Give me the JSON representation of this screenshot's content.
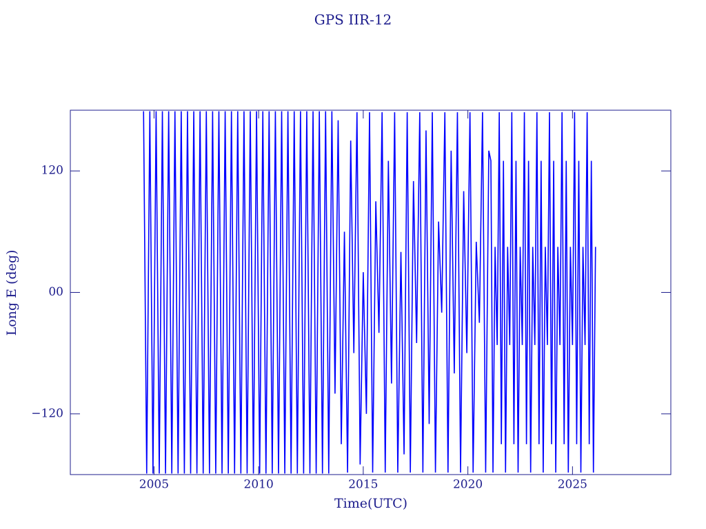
{
  "chart_data": {
    "type": "line",
    "title": "GPS IIR-12",
    "x_label": "Time(UTC)",
    "y_label": "Long E (deg)",
    "xlim": [
      2001,
      2029.7
    ],
    "ylim": [
      -180,
      180
    ],
    "xticks": [
      2005,
      2010,
      2015,
      2020,
      2025
    ],
    "yticks": [
      {
        "value": -120,
        "label": "−120"
      },
      {
        "value": 0,
        "label": "00"
      },
      120
    ],
    "series": [
      {
        "color": "#0000ff",
        "x": [
          2004.5,
          2004.65,
          2004.8,
          2004.95,
          2005.1,
          2005.25,
          2005.4,
          2005.55,
          2005.7,
          2005.85,
          2006,
          2006.15,
          2006.3,
          2006.45,
          2006.6,
          2006.75,
          2006.9,
          2007.05,
          2007.2,
          2007.35,
          2007.5,
          2007.65,
          2007.8,
          2007.95,
          2008.1,
          2008.25,
          2008.4,
          2008.55,
          2008.7,
          2008.85,
          2009,
          2009.15,
          2009.3,
          2009.45,
          2009.6,
          2009.75,
          2009.9,
          2010.05,
          2010.2,
          2010.35,
          2010.5,
          2010.65,
          2010.8,
          2010.95,
          2011.1,
          2011.25,
          2011.4,
          2011.55,
          2011.7,
          2011.85,
          2012,
          2012.15,
          2012.3,
          2012.45,
          2012.6,
          2012.75,
          2012.9,
          2013.05,
          2013.2,
          2013.35,
          2013.5,
          2013.65,
          2013.8,
          2013.95,
          2014.1,
          2014.25,
          2014.4,
          2014.55,
          2014.7,
          2014.85,
          2015,
          2015.15,
          2015.3,
          2015.45,
          2015.6,
          2015.75,
          2015.9,
          2016.05,
          2016.2,
          2016.35,
          2016.5,
          2016.65,
          2016.8,
          2016.95,
          2017.1,
          2017.25,
          2017.4,
          2017.55,
          2017.7,
          2017.85,
          2018,
          2018.15,
          2018.3,
          2018.45,
          2018.6,
          2018.75,
          2018.9,
          2019.05,
          2019.2,
          2019.35,
          2019.5,
          2019.65,
          2019.8,
          2019.95,
          2020.1,
          2020.25,
          2020.4,
          2020.55,
          2020.7,
          2020.85,
          2021,
          2021.1,
          2021.2,
          2021.3,
          2021.4,
          2021.5,
          2021.6,
          2021.7,
          2021.8,
          2021.9,
          2022,
          2022.1,
          2022.2,
          2022.3,
          2022.4,
          2022.5,
          2022.6,
          2022.7,
          2022.8,
          2022.9,
          2023,
          2023.1,
          2023.2,
          2023.3,
          2023.4,
          2023.5,
          2023.6,
          2023.7,
          2023.8,
          2023.9,
          2024,
          2024.1,
          2024.2,
          2024.3,
          2024.4,
          2024.5,
          2024.6,
          2024.7,
          2024.8,
          2024.9,
          2025,
          2025.1,
          2025.2,
          2025.3,
          2025.4,
          2025.5,
          2025.6,
          2025.7,
          2025.8,
          2025.9,
          2026,
          2026.1
        ],
        "values": [
          179,
          -179,
          179,
          -179,
          179,
          -179,
          179,
          -179,
          179,
          -179,
          179,
          -179,
          179,
          -179,
          179,
          -179,
          179,
          -179,
          179,
          -179,
          179,
          -179,
          179,
          -179,
          179,
          -179,
          179,
          -179,
          179,
          -179,
          179,
          -179,
          179,
          -179,
          179,
          -179,
          179,
          -179,
          179,
          -179,
          179,
          -179,
          179,
          -179,
          179,
          -179,
          179,
          -179,
          179,
          -179,
          179,
          -179,
          179,
          -179,
          179,
          -179,
          179,
          -179,
          179,
          -179,
          179,
          -100,
          170,
          -150,
          60,
          -178,
          150,
          -60,
          178,
          -170,
          20,
          -120,
          178,
          -178,
          90,
          -40,
          178,
          -178,
          130,
          -90,
          178,
          -178,
          40,
          -160,
          178,
          -178,
          110,
          -50,
          178,
          -178,
          160,
          -130,
          178,
          -178,
          70,
          -20,
          178,
          -178,
          140,
          -80,
          178,
          -178,
          100,
          -60,
          178,
          -178,
          50,
          -30,
          178,
          -178,
          140,
          130,
          -178,
          45,
          -52,
          178,
          -150,
          130,
          -178,
          45,
          -52,
          178,
          -150,
          130,
          -178,
          45,
          -52,
          178,
          -150,
          130,
          -178,
          45,
          -52,
          178,
          -150,
          130,
          -178,
          45,
          -52,
          178,
          -150,
          130,
          -178,
          45,
          -52,
          178,
          -150,
          130,
          -178,
          45,
          -52,
          178,
          -150,
          130,
          -178,
          45,
          -52,
          178,
          -150,
          130,
          -178,
          45
        ]
      }
    ]
  }
}
